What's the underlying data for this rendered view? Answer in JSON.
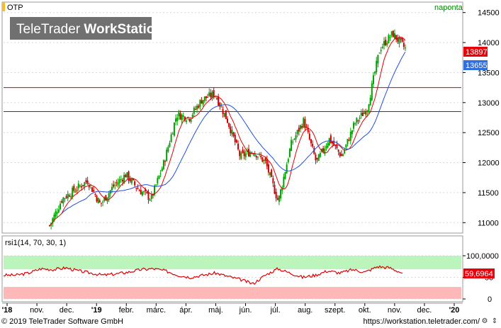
{
  "header": {
    "symbol": "OTP",
    "interval": "naponta",
    "brand_light": "TeleTrader ",
    "brand_bold": "WorkStation"
  },
  "price_axis": {
    "ticks": [
      "14500",
      "14000",
      "13500",
      "13000",
      "12500",
      "12000",
      "11500",
      "11000"
    ],
    "last_close_label": "13897",
    "ma_label": "13655"
  },
  "rsi_panel": {
    "title": "rsi1(14, 70, 30, 1)",
    "ticks": [
      "100,0000",
      "50",
      "0"
    ],
    "value_label": "59,6964"
  },
  "time_axis": {
    "labels": [
      "'18",
      "nov.",
      "dec.",
      "'19",
      "febr.",
      "márc.",
      "ápr.",
      "máj.",
      "jún.",
      "júl.",
      "aug.",
      "szept.",
      "okt.",
      "nov.",
      "dec.",
      "'20"
    ]
  },
  "footer": {
    "copyright": "© 2019 TeleTrader Software GmbH",
    "url": "https://workstation.teletrader.com/"
  },
  "colors": {
    "up_candle": "#00a000",
    "down_candle": "#cc0000",
    "support_line": "#cc0000",
    "ma_fast": "#e00000",
    "ma_slow": "#2050e0",
    "rsi_line": "#dd0000",
    "overbought_zone": "#bbf5bb",
    "oversold_zone": "#ffb8b8",
    "last_label_bg": "#e8000a",
    "ma_label_bg": "#2f6fe0"
  },
  "chart_data": [
    {
      "type": "candlestick",
      "title": "OTP",
      "ylim": [
        10850,
        14650
      ],
      "horizontal_lines": [
        13250,
        12850
      ],
      "grid": true,
      "x_months": [
        "okt.",
        "nov.",
        "dec.",
        "jan.",
        "febr.",
        "márc.",
        "ápr.",
        "máj.",
        "jún.",
        "júl.",
        "aug.",
        "szept.",
        "okt.",
        "nov."
      ],
      "close_series": [
        {
          "month": "2018 okt. (end)",
          "close": 10950
        },
        {
          "month": "2018 nov.",
          "close": 11400
        },
        {
          "month": "2018 nov. (end)",
          "close": 11550
        },
        {
          "month": "2018 dec.",
          "close": 11700
        },
        {
          "month": "2018 dec. (end)",
          "close": 11300
        },
        {
          "month": "2019 jan.",
          "close": 11600
        },
        {
          "month": "2019 jan. (end)",
          "close": 11800
        },
        {
          "month": "2019 febr.",
          "close": 11550
        },
        {
          "month": "2019 febr. (end)",
          "close": 11400
        },
        {
          "month": "2019 márc.",
          "close": 12000
        },
        {
          "month": "2019 márc. (mid)",
          "close": 12800
        },
        {
          "month": "2019 márc. (end)",
          "close": 12750
        },
        {
          "month": "2019 ápr.",
          "close": 13050
        },
        {
          "month": "2019 ápr. (end)",
          "close": 13150
        },
        {
          "month": "2019 máj.",
          "close": 12700
        },
        {
          "month": "2019 máj. (end)",
          "close": 12100
        },
        {
          "month": "2019 jún.",
          "close": 12200
        },
        {
          "month": "2019 jún. (end)",
          "close": 12000
        },
        {
          "month": "2019 júl.",
          "close": 11350
        },
        {
          "month": "2019 júl. (end)",
          "close": 12300
        },
        {
          "month": "2019 aug.",
          "close": 12700
        },
        {
          "month": "2019 aug. (end)",
          "close": 12000
        },
        {
          "month": "2019 szept.",
          "close": 12400
        },
        {
          "month": "2019 szept. (end)",
          "close": 12100
        },
        {
          "month": "2019 okt.",
          "close": 12650
        },
        {
          "month": "2019 okt. (end)",
          "close": 12900
        },
        {
          "month": "2019 okt. (late)",
          "close": 13900
        },
        {
          "month": "2019 nov.",
          "close": 14150
        },
        {
          "month": "2019 nov. (last)",
          "close": 13897
        }
      ],
      "last_close": 13897,
      "moving_average_last": 13655
    },
    {
      "type": "line",
      "title": "rsi1(14, 70, 30, 1)",
      "ylim": [
        0,
        100
      ],
      "zones": [
        {
          "from": 70,
          "to": 100
        },
        {
          "from": 0,
          "to": 30
        }
      ],
      "values": [
        55,
        55,
        60,
        70,
        68,
        72,
        65,
        60,
        55,
        58,
        62,
        68,
        70,
        65,
        55,
        50,
        55,
        60,
        52,
        45,
        35,
        55,
        70,
        60,
        50,
        55,
        65,
        60,
        68,
        62,
        75,
        72,
        59.6964
      ],
      "last_value": 59.6964
    }
  ]
}
